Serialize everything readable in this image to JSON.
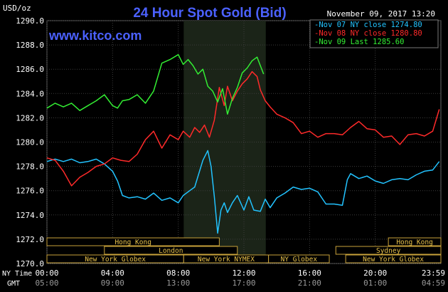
{
  "chart_data": {
    "type": "line",
    "title": "24 Hour Spot Gold (Bid)",
    "website": "www.kitco.com",
    "date_text": "November 09, 2017 13:20",
    "ylabel": "USD/oz",
    "ylim": [
      1270,
      1290
    ],
    "xlim": [
      0,
      24
    ],
    "y_ticks": [
      "1290.0",
      "1288.0",
      "1286.0",
      "1284.0",
      "1282.0",
      "1280.0",
      "1278.0",
      "1276.0",
      "1274.0",
      "1272.0",
      "1270.0"
    ],
    "y_tick_values": [
      1290,
      1288,
      1286,
      1284,
      1282,
      1280,
      1278,
      1276,
      1274,
      1272,
      1270
    ],
    "x_tick_hours": [
      0,
      4,
      8,
      12,
      16,
      20,
      23.983
    ],
    "x_ticks_ny": [
      "00:00",
      "04:00",
      "08:00",
      "12:00",
      "16:00",
      "20:00",
      "23:59"
    ],
    "x_ticks_gmt": [
      "05:00",
      "09:00",
      "13:00",
      "17:00",
      "21:00",
      "01:00",
      "04:59"
    ],
    "row_labels": {
      "ny": "NY Time",
      "gmt": "GMT"
    },
    "shaded_hours": [
      8.333,
      13.333
    ],
    "grid": true,
    "legend_position": "top-right",
    "sessions": [
      {
        "label": "Hong Kong",
        "start": 0,
        "end": 10.5,
        "row": 0
      },
      {
        "label": "Hong Kong",
        "start": 20.8,
        "end": 24,
        "row": 0
      },
      {
        "label": "London",
        "start": 3.5,
        "end": 11.6,
        "row": 1
      },
      {
        "label": "Sydney",
        "start": 17.6,
        "end": 24,
        "row": 1
      },
      {
        "label": "New York Globex",
        "start": 0,
        "end": 8.33,
        "row": 2
      },
      {
        "label": "New York NYMEX",
        "start": 8.33,
        "end": 13.5,
        "row": 2
      },
      {
        "label": "NY Globex",
        "start": 13.5,
        "end": 17.2,
        "row": 2
      },
      {
        "label": "New York Globex",
        "start": 18.2,
        "end": 24,
        "row": 2
      }
    ],
    "series": [
      {
        "name": "Nov 07 NY close 1274.80",
        "color": "#22c3ff",
        "x": [
          0,
          0.5,
          1,
          1.5,
          2,
          2.5,
          3,
          3.5,
          4,
          4.3,
          4.6,
          5,
          5.5,
          6,
          6.5,
          7,
          7.5,
          8,
          8.3,
          8.7,
          9,
          9.5,
          9.8,
          10,
          10.2,
          10.4,
          10.6,
          10.8,
          11,
          11.3,
          11.6,
          12,
          12.3,
          12.6,
          13,
          13.3,
          13.6,
          14,
          14.5,
          15,
          15.5,
          16,
          16.5,
          17,
          17.5,
          18,
          18.3,
          18.5,
          19,
          19.5,
          20,
          20.5,
          21,
          21.5,
          22,
          22.5,
          23,
          23.5,
          23.9
        ],
        "values": [
          1278.4,
          1278.6,
          1278.4,
          1278.6,
          1278.3,
          1278.4,
          1278.6,
          1278.2,
          1277.6,
          1276.8,
          1275.6,
          1275.4,
          1275.5,
          1275.3,
          1275.8,
          1275.2,
          1275.4,
          1275.0,
          1275.6,
          1276.0,
          1276.3,
          1278.5,
          1279.3,
          1278.0,
          1275.5,
          1272.5,
          1274.4,
          1275.0,
          1274.2,
          1275.0,
          1275.6,
          1274.4,
          1275.5,
          1274.4,
          1274.3,
          1275.3,
          1274.6,
          1275.4,
          1275.8,
          1276.3,
          1276.1,
          1276.2,
          1275.9,
          1274.9,
          1274.9,
          1274.8,
          1276.9,
          1277.4,
          1277.0,
          1277.2,
          1276.8,
          1276.6,
          1276.9,
          1277.0,
          1276.9,
          1277.3,
          1277.6,
          1277.7,
          1278.4
        ]
      },
      {
        "name": "Nov 08 NY close 1280.80",
        "color": "#ff2a2a",
        "x": [
          0,
          0.5,
          1,
          1.5,
          2,
          2.5,
          3,
          3.5,
          4,
          4.5,
          5,
          5.5,
          6,
          6.5,
          7,
          7.5,
          8,
          8.3,
          8.7,
          9,
          9.3,
          9.6,
          9.9,
          10.2,
          10.5,
          10.8,
          11,
          11.3,
          11.6,
          11.9,
          12.2,
          12.5,
          12.8,
          13,
          13.3,
          13.6,
          14,
          14.5,
          15,
          15.5,
          16,
          16.5,
          17,
          17.5,
          18,
          18.5,
          19,
          19.5,
          20,
          20.5,
          21,
          21.5,
          22,
          22.5,
          23,
          23.5,
          23.9
        ],
        "values": [
          1278.7,
          1278.5,
          1277.6,
          1276.4,
          1277.1,
          1277.5,
          1278.0,
          1278.2,
          1278.7,
          1278.5,
          1278.4,
          1279.0,
          1280.2,
          1280.9,
          1279.5,
          1280.6,
          1280.2,
          1280.9,
          1280.4,
          1281.2,
          1280.8,
          1281.4,
          1280.4,
          1281.8,
          1284.5,
          1283.0,
          1284.6,
          1283.4,
          1284.2,
          1284.8,
          1285.2,
          1285.8,
          1285.4,
          1284.3,
          1283.4,
          1282.9,
          1282.3,
          1282.0,
          1281.6,
          1280.7,
          1280.9,
          1280.4,
          1280.7,
          1280.7,
          1280.6,
          1281.2,
          1281.7,
          1281.1,
          1281.0,
          1280.4,
          1280.5,
          1279.8,
          1280.6,
          1280.7,
          1280.5,
          1280.9,
          1282.7
        ]
      },
      {
        "name": "Nov 09 Last 1285.60",
        "color": "#33ee33",
        "x": [
          0,
          0.5,
          1,
          1.5,
          2,
          2.5,
          3,
          3.5,
          4,
          4.3,
          4.6,
          5,
          5.5,
          6,
          6.5,
          7,
          7.5,
          8,
          8.3,
          8.6,
          8.9,
          9.2,
          9.5,
          9.8,
          10.1,
          10.4,
          10.7,
          11,
          11.3,
          11.6,
          11.9,
          12.2,
          12.5,
          12.8,
          13,
          13.2
        ],
        "values": [
          1282.8,
          1283.2,
          1282.9,
          1283.2,
          1282.6,
          1283.0,
          1283.4,
          1283.9,
          1283.0,
          1282.8,
          1283.4,
          1283.5,
          1283.9,
          1283.2,
          1284.2,
          1286.5,
          1286.8,
          1287.2,
          1286.4,
          1286.8,
          1286.3,
          1285.6,
          1286.0,
          1284.6,
          1284.2,
          1283.3,
          1284.4,
          1282.3,
          1283.6,
          1284.5,
          1285.7,
          1286.1,
          1286.7,
          1287.0,
          1286.3,
          1285.6
        ]
      }
    ]
  }
}
